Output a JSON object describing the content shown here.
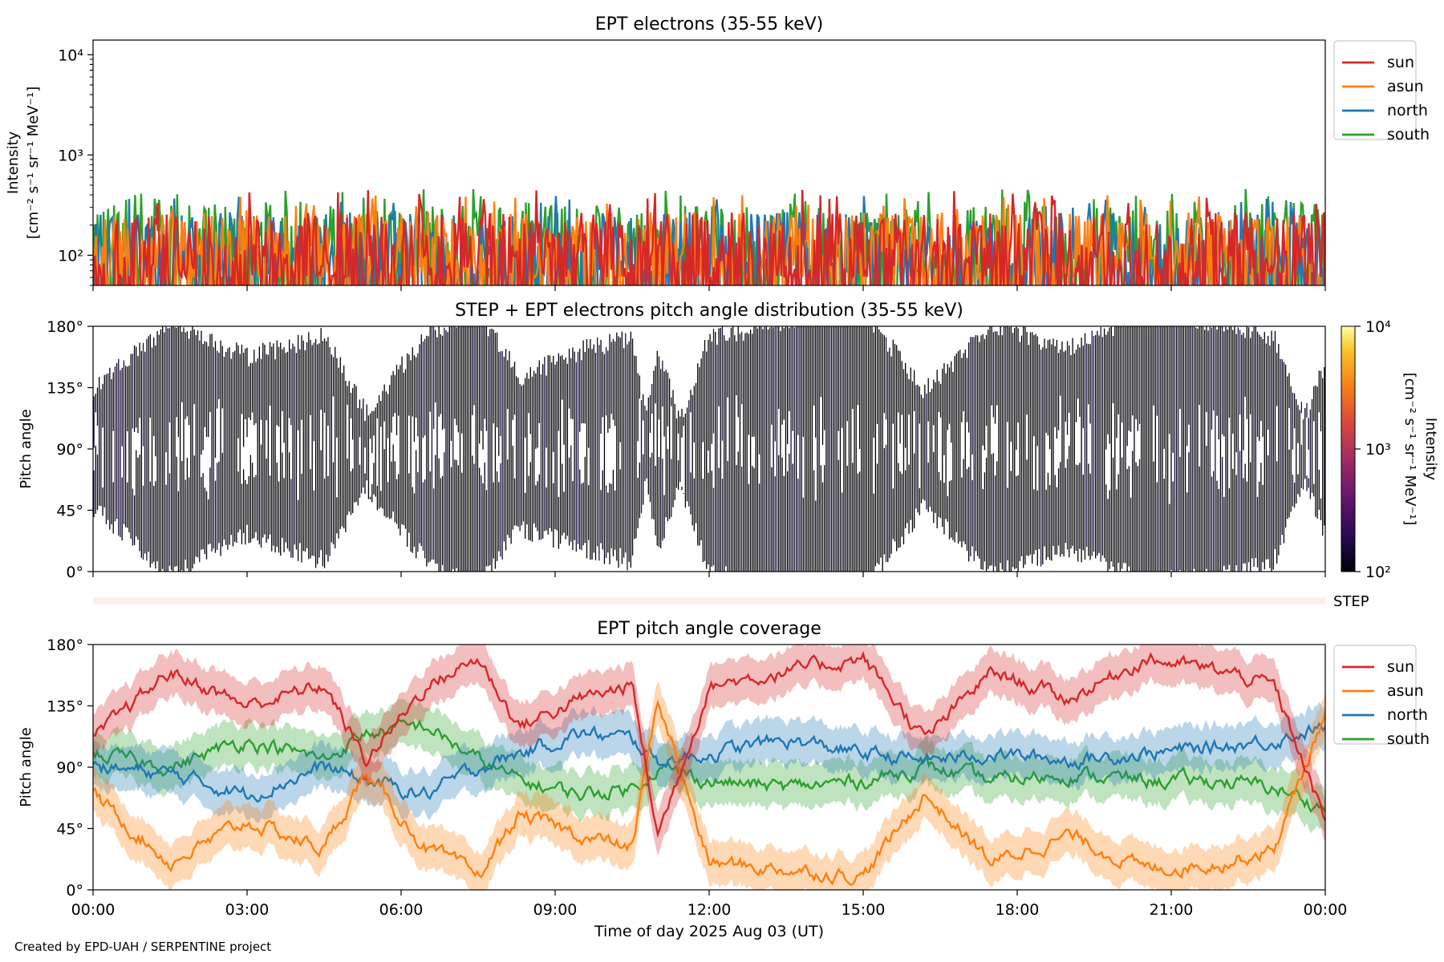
{
  "credit": "Created by EPD-UAH / SERPENTINE project",
  "colors": {
    "sun": "#d62728",
    "asun": "#ff7f0e",
    "north": "#1f77b4",
    "south": "#2ca02c"
  },
  "chart_data": [
    {
      "type": "line",
      "title": "EPT electrons (35-55 keV)",
      "ylabel": "Intensity",
      "ylabel_units": "[cm⁻² s⁻¹ sr⁻¹ MeV⁻¹]",
      "yscale": "log",
      "ylim": [
        50,
        14000
      ],
      "yticks": [
        "10²",
        "10³",
        "10⁴"
      ],
      "xlim": [
        "00:00",
        "24:00"
      ],
      "legend": "outside-right",
      "series": [
        {
          "name": "sun",
          "color": "#d62728",
          "typical_range": [
            60,
            250
          ],
          "peak": 450
        },
        {
          "name": "asun",
          "color": "#ff7f0e",
          "typical_range": [
            60,
            250
          ],
          "peak": 400
        },
        {
          "name": "north",
          "color": "#1f77b4",
          "typical_range": [
            60,
            250
          ],
          "peak": 400
        },
        {
          "name": "south",
          "color": "#2ca02c",
          "typical_range": [
            60,
            300
          ],
          "peak": 460
        }
      ]
    },
    {
      "type": "heatmap",
      "title": "STEP + EPT electrons pitch angle distribution (35-55 keV)",
      "ylabel": "Pitch angle",
      "ylim": [
        0,
        180
      ],
      "yticks": [
        "0°",
        "45°",
        "90°",
        "135°",
        "180°"
      ],
      "colorbar": {
        "label": "Intensity",
        "units": "[cm⁻² s⁻¹ sr⁻¹ MeV⁻¹]",
        "scale": "log",
        "range": [
          100,
          10000
        ],
        "ticks": [
          "10²",
          "10³",
          "10⁴"
        ],
        "colormap": "inferno"
      },
      "step_label": "STEP"
    },
    {
      "type": "line",
      "title": "EPT pitch angle coverage",
      "ylabel": "Pitch angle",
      "ylim": [
        0,
        180
      ],
      "yticks": [
        "0°",
        "45°",
        "90°",
        "135°",
        "180°"
      ],
      "xlabel": "Time of day 2025 Aug 03 (UT)",
      "xticks": [
        "00:00",
        "03:00",
        "06:00",
        "09:00",
        "12:00",
        "15:00",
        "18:00",
        "21:00",
        "00:00"
      ],
      "legend": "outside-right",
      "x_hours": [
        0,
        1.5,
        3,
        4.5,
        5.3,
        6.5,
        7.5,
        8.3,
        9.5,
        10.5,
        11,
        12,
        13.5,
        15,
        16.2,
        17.5,
        19,
        20.5,
        22,
        23,
        24
      ],
      "series": [
        {
          "name": "sun",
          "color": "#d62728",
          "values": [
            110,
            160,
            135,
            150,
            95,
            150,
            170,
            120,
            140,
            150,
            40,
            150,
            160,
            170,
            110,
            160,
            140,
            170,
            160,
            150,
            50
          ]
        },
        {
          "name": "asun",
          "color": "#ff7f0e",
          "values": [
            70,
            20,
            50,
            30,
            85,
            30,
            10,
            55,
            40,
            30,
            140,
            20,
            15,
            10,
            70,
            20,
            40,
            15,
            20,
            30,
            130
          ]
        },
        {
          "name": "north",
          "color": "#1f77b4",
          "values": [
            90,
            85,
            70,
            90,
            80,
            70,
            90,
            100,
            115,
            110,
            95,
            100,
            110,
            100,
            95,
            100,
            95,
            100,
            105,
            110,
            120
          ]
        },
        {
          "name": "south",
          "color": "#2ca02c",
          "values": [
            100,
            90,
            110,
            95,
            115,
            120,
            95,
            80,
            70,
            75,
            90,
            80,
            75,
            80,
            90,
            80,
            85,
            80,
            80,
            75,
            60
          ]
        }
      ]
    }
  ]
}
